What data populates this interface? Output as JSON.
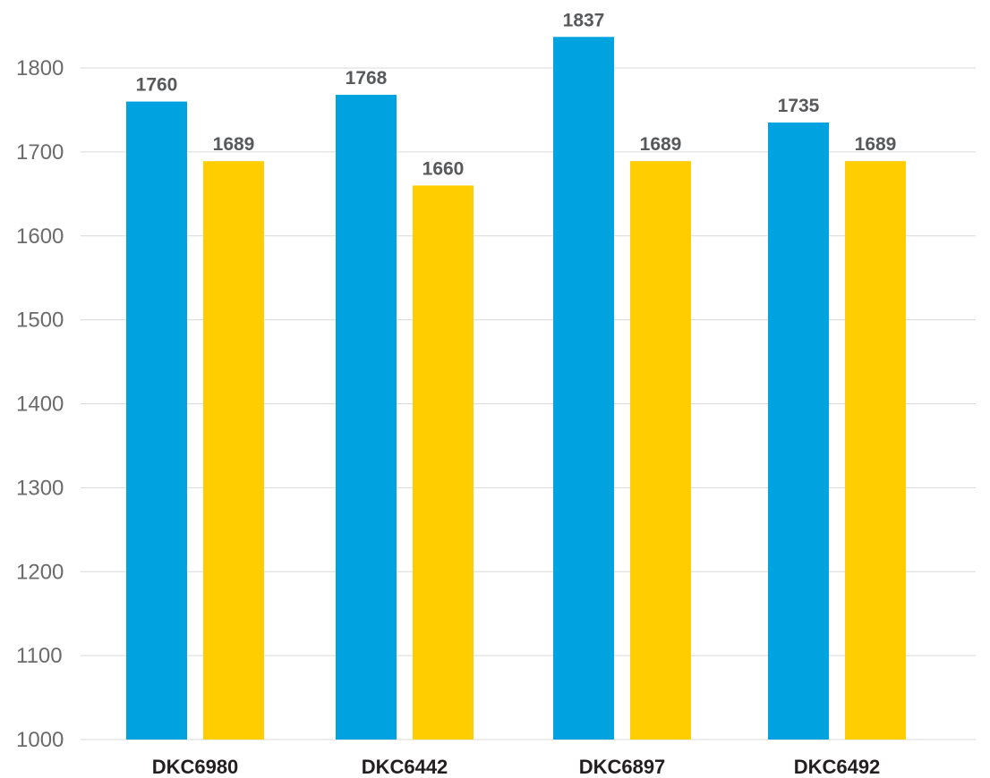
{
  "chart_data": {
    "type": "bar",
    "categories": [
      "DKC6980",
      "DKC6442",
      "DKC6897",
      "DKC6492"
    ],
    "series": [
      {
        "values": [
          1760,
          1768,
          1837,
          1735
        ],
        "color": "#00a3e0",
        "labels": [
          "1760",
          "1768",
          "1837",
          "1735"
        ]
      },
      {
        "values": [
          1689,
          1660,
          1689,
          1689
        ],
        "color": "#ffcd00",
        "labels": [
          "1689",
          "1660",
          "1689",
          "1689"
        ]
      }
    ],
    "ylim": [
      1000,
      1800
    ],
    "yticks": [
      1000,
      1100,
      1200,
      1300,
      1400,
      1500,
      1600,
      1700,
      1800
    ],
    "grid": true,
    "xlabel": "",
    "ylabel": "",
    "title": ""
  }
}
